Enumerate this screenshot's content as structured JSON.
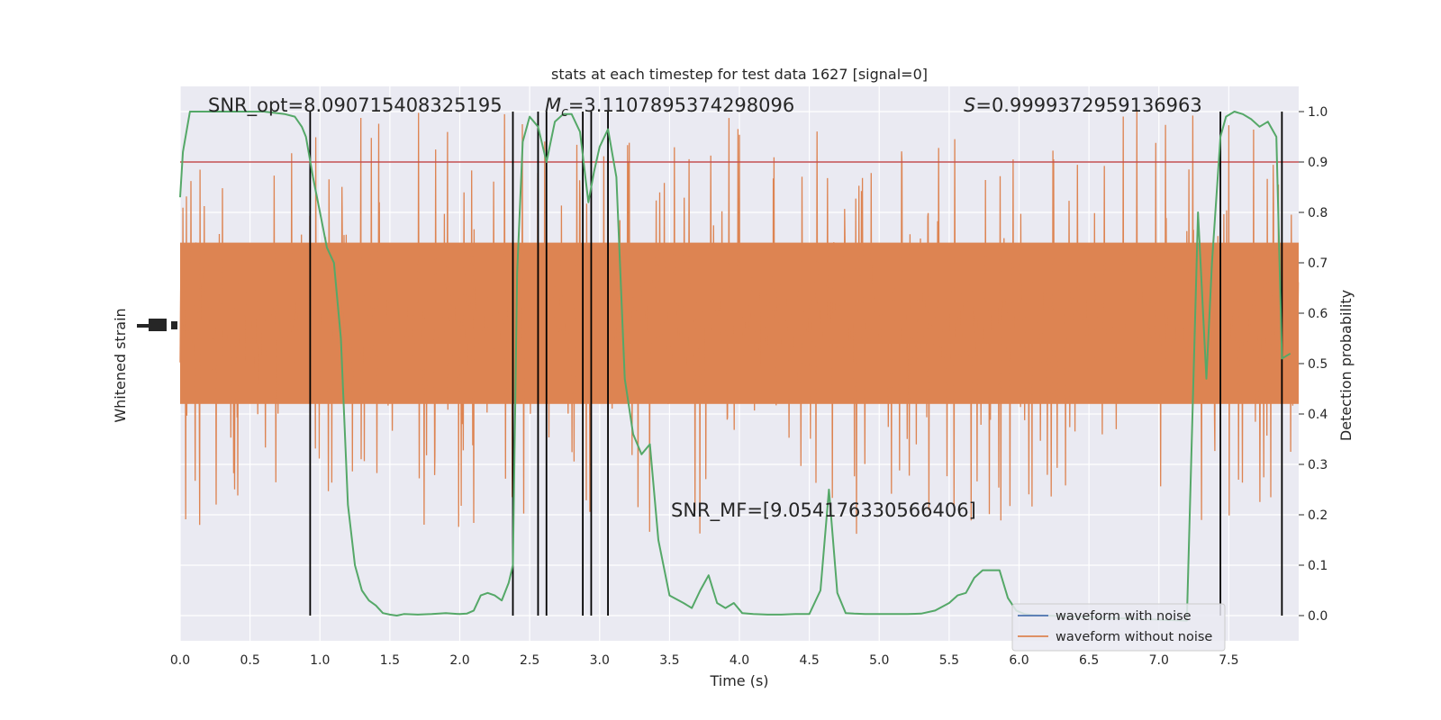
{
  "chart_data": {
    "type": "line",
    "title": "stats at each timestep for test data 1627 [signal=0]",
    "xlabel": "Time (s)",
    "ylabel_left": "Whitened strain",
    "ylabel_right": "Detection probability",
    "xlim": [
      0.0,
      8.0
    ],
    "ylim_right": [
      -0.05,
      1.05
    ],
    "grid": true,
    "x_ticks": [
      "0.0",
      "0.5",
      "1.0",
      "1.5",
      "2.0",
      "2.5",
      "3.0",
      "3.5",
      "4.0",
      "4.5",
      "5.0",
      "5.5",
      "6.0",
      "6.5",
      "7.0",
      "7.5"
    ],
    "y_ticks_right": [
      "0.0",
      "0.1",
      "0.2",
      "0.3",
      "0.4",
      "0.5",
      "0.6",
      "0.7",
      "0.8",
      "0.9",
      "1.0"
    ],
    "annotations": {
      "snr_opt": "SNR_opt=8.090715408325195",
      "mc_symbol": "M",
      "mc_subscript": "c",
      "mc_value": "=3.1107895374298096",
      "s_symbol": "S",
      "s_value": "=0.9999372959136963",
      "snr_mf": "SNR_MF=[9.054176330566406]"
    },
    "legend": {
      "position": "lower-right",
      "entries": [
        {
          "label": "waveform with noise",
          "color": "#4c72b0"
        },
        {
          "label": "waveform without noise",
          "color": "#dd8452"
        }
      ]
    },
    "threshold": {
      "y": 0.9,
      "color": "#c44e52"
    },
    "vertical_lines_x": [
      0.93,
      2.38,
      2.56,
      2.62,
      2.88,
      2.94,
      3.06,
      7.44,
      7.88
    ],
    "noise_band": {
      "center": 0.58,
      "core_halfwidth": 0.16,
      "spike_max": 0.42,
      "color": "#dd8452"
    },
    "series": [
      {
        "name": "Detection probability",
        "color": "#55a868",
        "x": [
          0.0,
          0.02,
          0.07,
          0.2,
          0.4,
          0.6,
          0.75,
          0.82,
          0.87,
          0.9,
          0.95,
          1.0,
          1.05,
          1.1,
          1.15,
          1.2,
          1.25,
          1.3,
          1.35,
          1.4,
          1.45,
          1.5,
          1.55,
          1.6,
          1.7,
          1.8,
          1.9,
          2.0,
          2.05,
          2.1,
          2.15,
          2.2,
          2.25,
          2.3,
          2.35,
          2.38,
          2.41,
          2.45,
          2.5,
          2.56,
          2.62,
          2.68,
          2.74,
          2.8,
          2.86,
          2.92,
          2.96,
          3.0,
          3.06,
          3.12,
          3.18,
          3.24,
          3.3,
          3.36,
          3.42,
          3.5,
          3.6,
          3.66,
          3.72,
          3.78,
          3.84,
          3.9,
          3.96,
          4.02,
          4.1,
          4.2,
          4.3,
          4.4,
          4.5,
          4.58,
          4.64,
          4.7,
          4.76,
          4.82,
          4.9,
          5.0,
          5.1,
          5.2,
          5.3,
          5.4,
          5.5,
          5.56,
          5.62,
          5.68,
          5.74,
          5.8,
          5.86,
          5.92,
          5.98,
          6.04,
          6.1,
          6.2,
          7.2,
          7.28,
          7.34,
          7.38,
          7.44,
          7.48,
          7.54,
          7.6,
          7.66,
          7.72,
          7.78,
          7.84,
          7.88,
          7.94
        ],
        "y": [
          0.83,
          0.92,
          1.0,
          1.0,
          1.0,
          1.0,
          0.995,
          0.99,
          0.97,
          0.95,
          0.87,
          0.8,
          0.73,
          0.7,
          0.55,
          0.22,
          0.1,
          0.05,
          0.03,
          0.02,
          0.005,
          0.002,
          0.0,
          0.003,
          0.002,
          0.003,
          0.005,
          0.003,
          0.004,
          0.01,
          0.04,
          0.045,
          0.04,
          0.03,
          0.065,
          0.1,
          0.68,
          0.94,
          0.99,
          0.97,
          0.9,
          0.98,
          0.995,
          0.995,
          0.96,
          0.82,
          0.88,
          0.93,
          0.965,
          0.87,
          0.47,
          0.36,
          0.32,
          0.34,
          0.15,
          0.04,
          0.025,
          0.015,
          0.05,
          0.08,
          0.025,
          0.015,
          0.025,
          0.005,
          0.003,
          0.002,
          0.002,
          0.003,
          0.003,
          0.05,
          0.25,
          0.045,
          0.005,
          0.004,
          0.003,
          0.003,
          0.003,
          0.003,
          0.004,
          0.01,
          0.025,
          0.04,
          0.045,
          0.075,
          0.09,
          0.09,
          0.09,
          0.035,
          0.01,
          0.003,
          0.001,
          0.0,
          -0.01,
          0.8,
          0.47,
          0.7,
          0.95,
          0.99,
          1.0,
          0.995,
          0.985,
          0.97,
          0.98,
          0.95,
          0.51,
          0.52
        ]
      }
    ]
  }
}
